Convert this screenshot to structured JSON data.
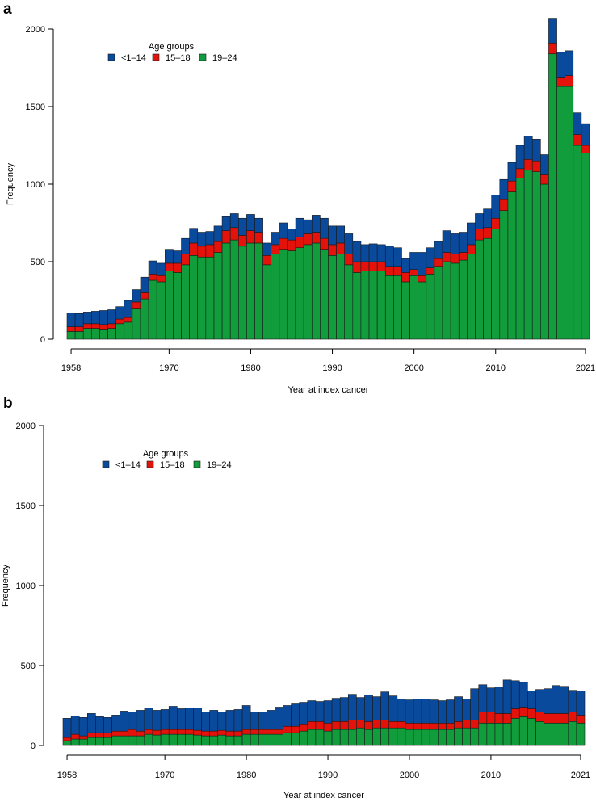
{
  "figure": {
    "panels": [
      "a",
      "b"
    ],
    "legend_title": "Age groups",
    "colors": {
      "child": "#0a4a9c",
      "teen": "#e3120b",
      "young_adult": "#129d3c"
    }
  },
  "chart_data": [
    {
      "type": "bar",
      "stacked": true,
      "panel_label": "a",
      "title": "",
      "xlabel": "Year at index cancer",
      "ylabel": "Frequency",
      "ylim": [
        0,
        2000
      ],
      "y_ticks": [
        0,
        500,
        1000,
        1500,
        2000
      ],
      "x_ticks": [
        1958,
        1970,
        1980,
        1990,
        2000,
        2010,
        2021
      ],
      "legend": {
        "title": "Age groups",
        "entries": [
          "<1–14",
          "15–18",
          "19–24"
        ],
        "placement": "top-left"
      },
      "categories": [
        1958,
        1959,
        1960,
        1961,
        1962,
        1963,
        1964,
        1965,
        1966,
        1967,
        1968,
        1969,
        1970,
        1971,
        1972,
        1973,
        1974,
        1975,
        1976,
        1977,
        1978,
        1979,
        1980,
        1981,
        1982,
        1983,
        1984,
        1985,
        1986,
        1987,
        1988,
        1989,
        1990,
        1991,
        1992,
        1993,
        1994,
        1995,
        1996,
        1997,
        1998,
        1999,
        2000,
        2001,
        2002,
        2003,
        2004,
        2005,
        2006,
        2007,
        2008,
        2009,
        2010,
        2011,
        2012,
        2013,
        2014,
        2015,
        2016,
        2017,
        2018,
        2019,
        2020,
        2021
      ],
      "series": [
        {
          "name": "19–24",
          "color": "#129d3c",
          "values": [
            50,
            50,
            70,
            70,
            65,
            70,
            100,
            110,
            200,
            260,
            380,
            370,
            440,
            430,
            480,
            540,
            530,
            530,
            560,
            620,
            640,
            600,
            620,
            620,
            480,
            550,
            580,
            570,
            590,
            610,
            620,
            580,
            540,
            550,
            480,
            430,
            440,
            440,
            440,
            410,
            410,
            370,
            410,
            370,
            420,
            470,
            500,
            490,
            510,
            550,
            640,
            650,
            710,
            830,
            950,
            1040,
            1090,
            1080,
            1000,
            1840,
            1630,
            1630,
            1250,
            1200
          ],
          "totals": [
            170,
            165,
            175,
            180,
            185,
            190,
            210,
            250,
            320,
            400,
            505,
            490,
            580,
            570,
            650,
            715,
            690,
            695,
            730,
            790,
            810,
            780,
            805,
            780,
            620,
            690,
            750,
            710,
            780,
            770,
            800,
            780,
            730,
            730,
            680,
            630,
            610,
            615,
            610,
            600,
            590,
            520,
            560,
            560,
            590,
            630,
            700,
            680,
            690,
            750,
            810,
            840,
            930,
            1030,
            1140,
            1250,
            1310,
            1290,
            1190,
            2070,
            1850,
            1860,
            1460,
            1390
          ]
        },
        {
          "name": "15–18",
          "color": "#e3120b",
          "values": [
            30,
            30,
            30,
            30,
            30,
            30,
            30,
            30,
            40,
            40,
            40,
            40,
            50,
            60,
            70,
            80,
            70,
            80,
            70,
            80,
            80,
            70,
            80,
            70,
            60,
            60,
            70,
            70,
            70,
            70,
            70,
            70,
            70,
            70,
            70,
            70,
            60,
            60,
            60,
            60,
            60,
            60,
            40,
            40,
            40,
            50,
            60,
            60,
            50,
            60,
            70,
            70,
            70,
            70,
            70,
            60,
            70,
            70,
            60,
            70,
            60,
            70,
            70,
            50
          ]
        },
        {
          "name": "<1–14",
          "color": "#0a4a9c",
          "values": [
            90,
            85,
            75,
            80,
            90,
            90,
            80,
            110,
            80,
            100,
            85,
            80,
            90,
            80,
            100,
            95,
            90,
            85,
            100,
            90,
            90,
            110,
            105,
            90,
            80,
            80,
            100,
            70,
            120,
            90,
            110,
            130,
            120,
            110,
            130,
            130,
            110,
            115,
            110,
            130,
            120,
            90,
            110,
            150,
            130,
            110,
            140,
            130,
            130,
            140,
            100,
            120,
            150,
            130,
            120,
            150,
            150,
            140,
            130,
            160,
            160,
            160,
            140,
            140
          ]
        }
      ]
    },
    {
      "type": "bar",
      "stacked": true,
      "panel_label": "b",
      "title": "",
      "xlabel": "Year at index cancer",
      "ylabel": "Frequency",
      "ylim": [
        0,
        2000
      ],
      "y_ticks": [
        0,
        500,
        1000,
        1500,
        2000
      ],
      "x_ticks": [
        1958,
        1970,
        1980,
        1990,
        2000,
        2010,
        2021
      ],
      "legend": {
        "title": "Age groups",
        "entries": [
          "<1–14",
          "15–18",
          "19–24"
        ],
        "placement": "top-left"
      },
      "categories": [
        1958,
        1959,
        1960,
        1961,
        1962,
        1963,
        1964,
        1965,
        1966,
        1967,
        1968,
        1969,
        1970,
        1971,
        1972,
        1973,
        1974,
        1975,
        1976,
        1977,
        1978,
        1979,
        1980,
        1981,
        1982,
        1983,
        1984,
        1985,
        1986,
        1987,
        1988,
        1989,
        1990,
        1991,
        1992,
        1993,
        1994,
        1995,
        1996,
        1997,
        1998,
        1999,
        2000,
        2001,
        2002,
        2003,
        2004,
        2005,
        2006,
        2007,
        2008,
        2009,
        2010,
        2011,
        2012,
        2013,
        2014,
        2015,
        2016,
        2017,
        2018,
        2019,
        2020,
        2021
      ],
      "series": [
        {
          "name": "19–24",
          "color": "#129d3c",
          "values": [
            30,
            40,
            40,
            50,
            50,
            50,
            60,
            60,
            60,
            60,
            70,
            65,
            70,
            70,
            70,
            70,
            65,
            60,
            60,
            65,
            60,
            60,
            70,
            70,
            70,
            70,
            70,
            80,
            80,
            90,
            100,
            100,
            90,
            100,
            100,
            100,
            110,
            100,
            110,
            110,
            110,
            110,
            100,
            100,
            100,
            100,
            100,
            100,
            110,
            110,
            110,
            140,
            140,
            140,
            140,
            170,
            180,
            170,
            150,
            140,
            140,
            140,
            150,
            140
          ],
          "totals": [
            170,
            185,
            175,
            200,
            180,
            175,
            190,
            215,
            210,
            220,
            235,
            220,
            225,
            245,
            230,
            235,
            235,
            210,
            220,
            210,
            220,
            225,
            250,
            210,
            210,
            220,
            240,
            250,
            260,
            270,
            280,
            275,
            280,
            295,
            300,
            320,
            300,
            315,
            305,
            335,
            310,
            290,
            285,
            290,
            290,
            285,
            280,
            285,
            305,
            290,
            355,
            380,
            360,
            365,
            410,
            405,
            395,
            340,
            350,
            355,
            375,
            370,
            345,
            340
          ]
        },
        {
          "name": "15–18",
          "color": "#e3120b",
          "values": [
            20,
            30,
            20,
            30,
            30,
            30,
            30,
            30,
            40,
            30,
            30,
            30,
            30,
            30,
            30,
            30,
            30,
            30,
            30,
            30,
            30,
            30,
            30,
            30,
            30,
            30,
            30,
            40,
            40,
            40,
            50,
            50,
            50,
            50,
            50,
            60,
            50,
            50,
            50,
            50,
            40,
            40,
            40,
            40,
            40,
            40,
            40,
            40,
            40,
            50,
            50,
            70,
            70,
            60,
            60,
            60,
            60,
            60,
            60,
            60,
            60,
            60,
            60,
            50
          ]
        },
        {
          "name": "<1–14",
          "color": "#0a4a9c",
          "values": [
            120,
            115,
            115,
            120,
            100,
            95,
            100,
            125,
            110,
            130,
            135,
            125,
            125,
            145,
            130,
            135,
            140,
            120,
            130,
            115,
            130,
            135,
            150,
            110,
            110,
            120,
            140,
            130,
            140,
            140,
            130,
            125,
            140,
            145,
            150,
            160,
            140,
            165,
            145,
            175,
            160,
            140,
            145,
            150,
            150,
            145,
            140,
            145,
            155,
            130,
            195,
            170,
            150,
            165,
            210,
            175,
            155,
            110,
            140,
            155,
            175,
            170,
            135,
            150
          ]
        }
      ]
    }
  ]
}
